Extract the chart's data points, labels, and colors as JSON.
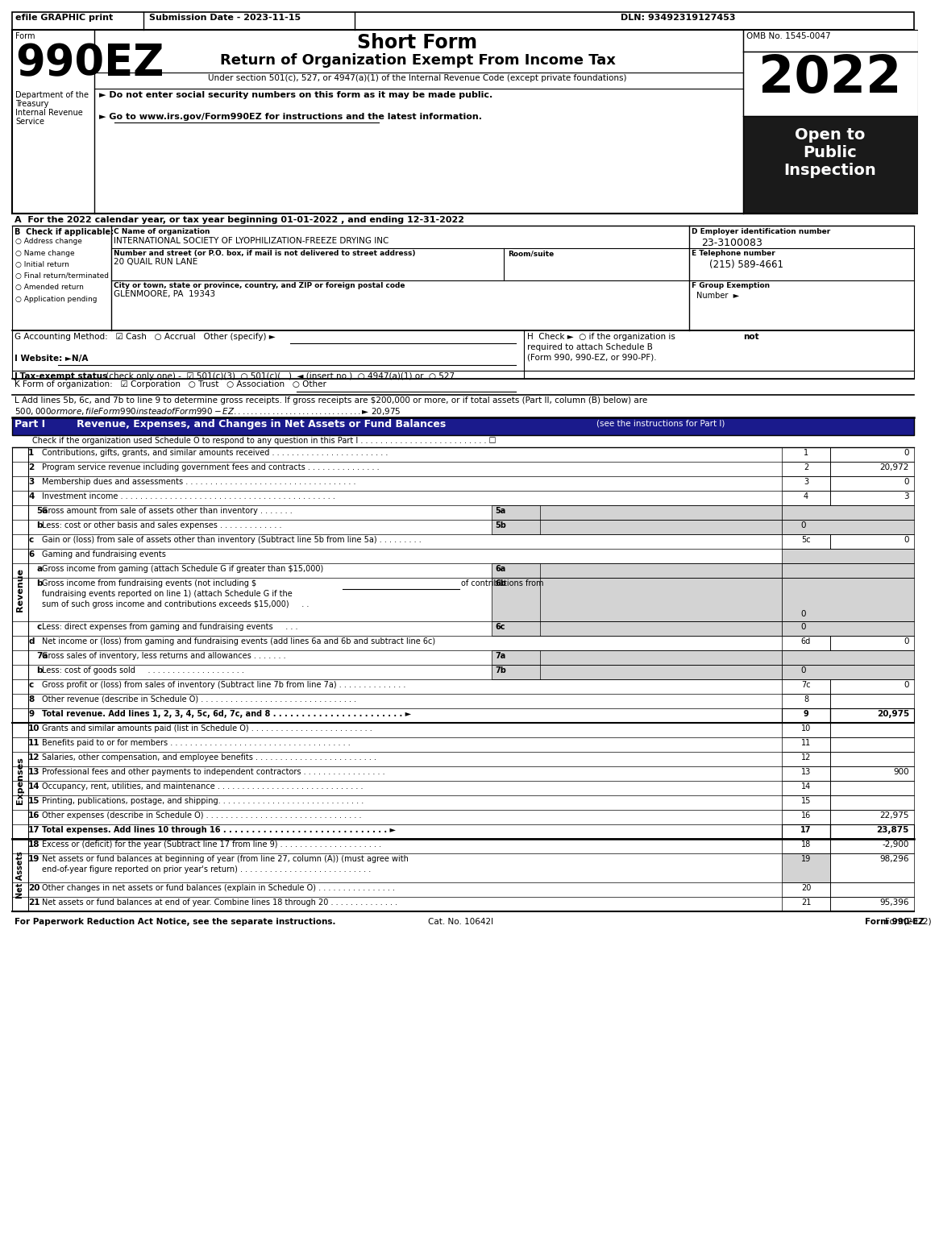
{
  "title_short": "Short Form",
  "title_main": "Return of Organization Exempt From Income Tax",
  "subtitle": "Under section 501(c), 527, or 4947(a)(1) of the Internal Revenue Code (except private foundations)",
  "year": "2022",
  "omb": "OMB No. 1545-0047",
  "form_number": "990EZ",
  "dept_line1": "Department of the",
  "dept_line2": "Treasury",
  "dept_line3": "Internal Revenue",
  "dept_line4": "Service",
  "bullet1": "► Do not enter social security numbers on this form as it may be made public.",
  "bullet2": "► Go to www.irs.gov/Form990EZ for instructions and the latest information.",
  "open_to": "Open to\nPublic\nInspection",
  "section_A": "A  For the 2022 calendar year, or tax year beginning 01-01-2022 , and ending 12-31-2022",
  "check_items": [
    "Address change",
    "Name change",
    "Initial return",
    "Final return/terminated",
    "Amended return",
    "Application pending"
  ],
  "org_name": "INTERNATIONAL SOCIETY OF LYOPHILIZATION-FREEZE DRYING INC",
  "address": "20 QUAIL RUN LANE",
  "city": "GLENMOORE, PA  19343",
  "ein": "23-3100083",
  "phone": "(215) 589-4661",
  "footer_left": "For Paperwork Reduction Act Notice, see the separate instructions.",
  "footer_mid": "Cat. No. 10642I",
  "footer_right": "Form 990-EZ (2022)"
}
